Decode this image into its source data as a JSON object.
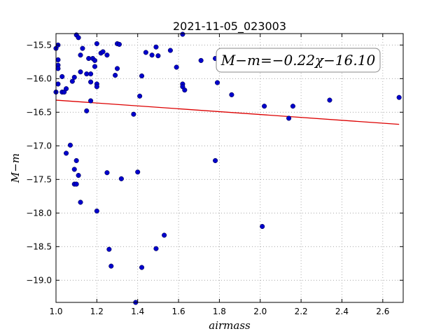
{
  "chart_data": {
    "type": "scatter",
    "title": "2021-11-05_023003",
    "xlabel": "airmass",
    "ylabel": "M−m",
    "xlim": [
      1.0,
      2.7
    ],
    "ylim": [
      -19.33,
      -15.33
    ],
    "y_inverted": true,
    "grid": true,
    "xticks": [
      1.0,
      1.2,
      1.4,
      1.6,
      1.8,
      2.0,
      2.2,
      2.4,
      2.6
    ],
    "xtick_labels": [
      "1.0",
      "1.2",
      "1.4",
      "1.6",
      "1.8",
      "2.0",
      "2.2",
      "2.4",
      "2.6"
    ],
    "yticks": [
      -15.5,
      -16.0,
      -16.5,
      -17.0,
      -17.5,
      -18.0,
      -18.5,
      -19.0
    ],
    "ytick_labels": [
      "−15.5",
      "−16.0",
      "−16.5",
      "−17.0",
      "−17.5",
      "−18.0",
      "−18.5",
      "−19.0"
    ],
    "annotation": "M−m=−0.22χ−16.10",
    "point_color": "#0000cc",
    "fit_color": "#dd0000",
    "fit_line": {
      "x": [
        1.0,
        2.68
      ],
      "y": [
        -16.32,
        -16.68
      ]
    },
    "points": [
      {
        "x": 1.0,
        "y": -15.55
      },
      {
        "x": 1.01,
        "y": -15.5
      },
      {
        "x": 1.01,
        "y": -15.72
      },
      {
        "x": 1.01,
        "y": -15.8
      },
      {
        "x": 1.01,
        "y": -15.85
      },
      {
        "x": 1.0,
        "y": -16.2
      },
      {
        "x": 1.01,
        "y": -16.08
      },
      {
        "x": 1.03,
        "y": -15.97
      },
      {
        "x": 1.03,
        "y": -16.2
      },
      {
        "x": 1.04,
        "y": -16.2
      },
      {
        "x": 1.05,
        "y": -16.15
      },
      {
        "x": 1.05,
        "y": -17.11
      },
      {
        "x": 1.07,
        "y": -16.99
      },
      {
        "x": 1.08,
        "y": -16.04
      },
      {
        "x": 1.09,
        "y": -15.98
      },
      {
        "x": 1.09,
        "y": -17.35
      },
      {
        "x": 1.09,
        "y": -17.57
      },
      {
        "x": 1.1,
        "y": -15.35
      },
      {
        "x": 1.1,
        "y": -17.22
      },
      {
        "x": 1.1,
        "y": -17.57
      },
      {
        "x": 1.11,
        "y": -17.44
      },
      {
        "x": 1.11,
        "y": -15.39
      },
      {
        "x": 1.12,
        "y": -15.65
      },
      {
        "x": 1.12,
        "y": -15.9
      },
      {
        "x": 1.12,
        "y": -17.84
      },
      {
        "x": 1.13,
        "y": -15.55
      },
      {
        "x": 1.15,
        "y": -15.93
      },
      {
        "x": 1.15,
        "y": -16.48
      },
      {
        "x": 1.16,
        "y": -15.7
      },
      {
        "x": 1.17,
        "y": -15.93
      },
      {
        "x": 1.17,
        "y": -16.05
      },
      {
        "x": 1.17,
        "y": -16.33
      },
      {
        "x": 1.18,
        "y": -15.7
      },
      {
        "x": 1.19,
        "y": -15.82
      },
      {
        "x": 1.19,
        "y": -15.73
      },
      {
        "x": 1.2,
        "y": -16.08
      },
      {
        "x": 1.2,
        "y": -16.12
      },
      {
        "x": 1.2,
        "y": -15.48
      },
      {
        "x": 1.2,
        "y": -17.97
      },
      {
        "x": 1.22,
        "y": -15.62
      },
      {
        "x": 1.23,
        "y": -15.6
      },
      {
        "x": 1.25,
        "y": -17.4
      },
      {
        "x": 1.25,
        "y": -15.65
      },
      {
        "x": 1.26,
        "y": -18.54
      },
      {
        "x": 1.27,
        "y": -18.79
      },
      {
        "x": 1.29,
        "y": -15.95
      },
      {
        "x": 1.3,
        "y": -15.85
      },
      {
        "x": 1.3,
        "y": -15.48
      },
      {
        "x": 1.31,
        "y": -15.49
      },
      {
        "x": 1.32,
        "y": -17.49
      },
      {
        "x": 1.38,
        "y": -16.53
      },
      {
        "x": 1.39,
        "y": -19.33
      },
      {
        "x": 1.4,
        "y": -17.39
      },
      {
        "x": 1.41,
        "y": -16.26
      },
      {
        "x": 1.42,
        "y": -18.81
      },
      {
        "x": 1.42,
        "y": -15.96
      },
      {
        "x": 1.44,
        "y": -15.61
      },
      {
        "x": 1.47,
        "y": -15.65
      },
      {
        "x": 1.49,
        "y": -15.53
      },
      {
        "x": 1.5,
        "y": -15.66
      },
      {
        "x": 1.49,
        "y": -18.53
      },
      {
        "x": 1.53,
        "y": -18.33
      },
      {
        "x": 1.56,
        "y": -15.58
      },
      {
        "x": 1.59,
        "y": -15.83
      },
      {
        "x": 1.62,
        "y": -15.34
      },
      {
        "x": 1.62,
        "y": -16.08
      },
      {
        "x": 1.62,
        "y": -16.12
      },
      {
        "x": 1.63,
        "y": -16.17
      },
      {
        "x": 1.71,
        "y": -15.73
      },
      {
        "x": 1.78,
        "y": -15.7
      },
      {
        "x": 1.78,
        "y": -17.22
      },
      {
        "x": 1.79,
        "y": -16.06
      },
      {
        "x": 1.86,
        "y": -16.24
      },
      {
        "x": 2.01,
        "y": -18.2
      },
      {
        "x": 2.02,
        "y": -16.41
      },
      {
        "x": 2.14,
        "y": -16.59
      },
      {
        "x": 2.16,
        "y": -16.41
      },
      {
        "x": 2.34,
        "y": -16.32
      },
      {
        "x": 2.68,
        "y": -16.28
      }
    ]
  }
}
